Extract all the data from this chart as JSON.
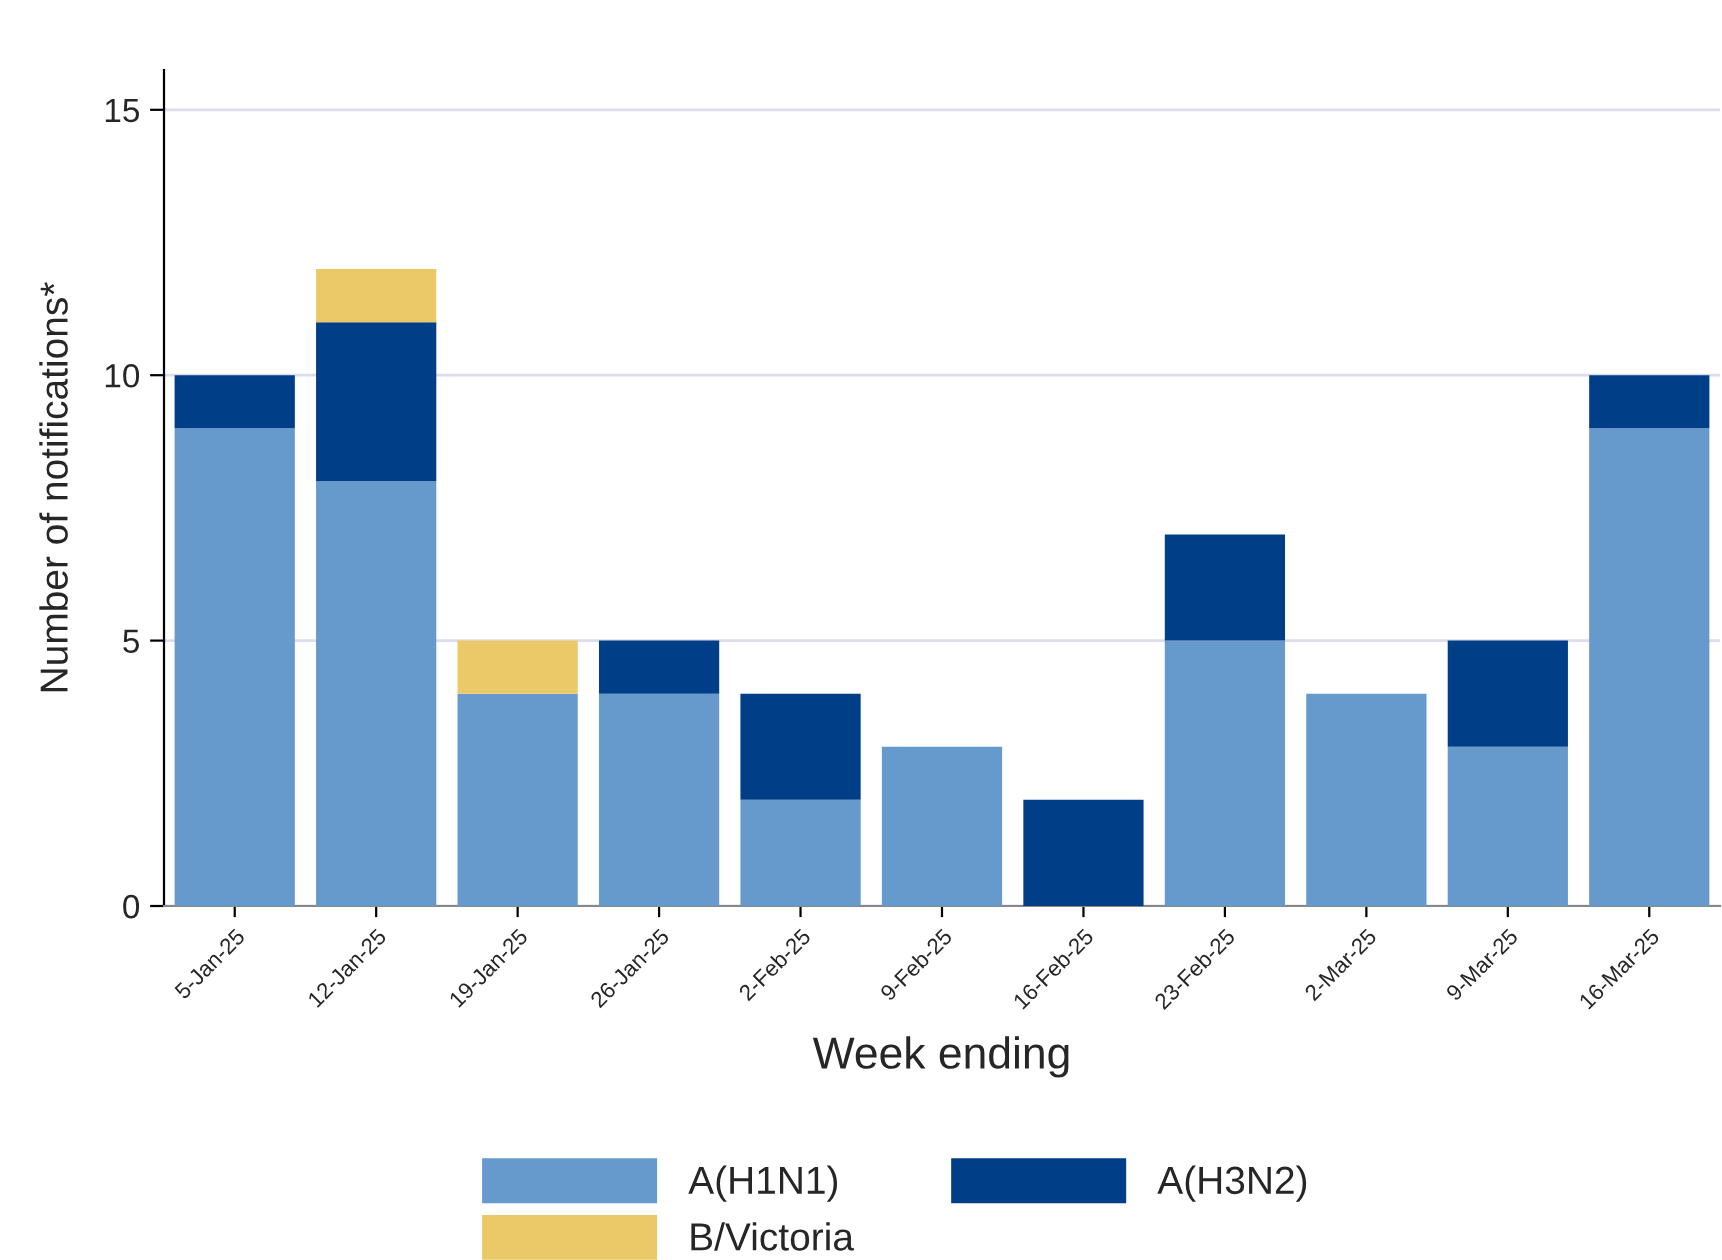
{
  "chart_data": {
    "type": "bar",
    "stacked": true,
    "xlabel": "Week ending",
    "ylabel": "Number of notifications*",
    "categories": [
      "5-Jan-25",
      "12-Jan-25",
      "19-Jan-25",
      "26-Jan-25",
      "2-Feb-25",
      "9-Feb-25",
      "16-Feb-25",
      "23-Feb-25",
      "2-Mar-25",
      "9-Mar-25",
      "16-Mar-25"
    ],
    "series": [
      {
        "name": "A(H1N1)",
        "color": "#6699cc",
        "values": [
          9,
          8,
          4,
          4,
          2,
          3,
          null,
          5,
          4,
          3,
          9
        ]
      },
      {
        "name": "A(H3N2)",
        "color": "#003f87",
        "values": [
          1,
          3,
          null,
          1,
          2,
          null,
          2,
          2,
          null,
          2,
          1
        ]
      },
      {
        "name": "B/Victoria",
        "color": "#ecc968",
        "values": [
          null,
          1,
          1,
          null,
          null,
          null,
          null,
          null,
          null,
          null,
          null
        ]
      }
    ],
    "ylim": [
      0,
      15.75
    ],
    "yticks": [
      0,
      5,
      10,
      15
    ],
    "grid": "y",
    "legend": "bottom"
  }
}
